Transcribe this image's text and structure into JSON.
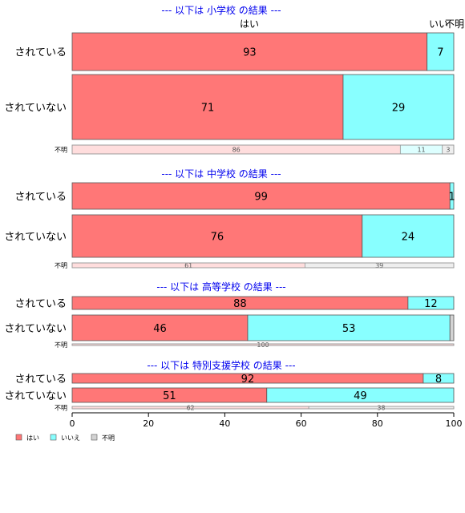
{
  "chart_data": {
    "type": "bar",
    "orientation": "horizontal",
    "stacked": true,
    "xlim": [
      0,
      100
    ],
    "x_ticks": [
      "0",
      "20",
      "40",
      "60",
      "80",
      "100"
    ],
    "legend": {
      "placement": "bottom-left",
      "entries": [
        {
          "label": "はい",
          "color": "#ff7777"
        },
        {
          "label": "いいえ",
          "color": "#88ffff"
        },
        {
          "label": "不明",
          "color": "#d3d3d3"
        }
      ]
    },
    "column_headers": [
      "はい",
      "いい",
      "不明"
    ],
    "panels": [
      {
        "title": "--- 以下は 小学校 の結果 ---",
        "rows": [
          {
            "label": "されている",
            "values": [
              93,
              7,
              0
            ],
            "value_labels": [
              "93",
              "7",
              ""
            ]
          },
          {
            "label": "されていない",
            "values": [
              71,
              29,
              0
            ],
            "value_labels": [
              "71",
              "29",
              ""
            ]
          },
          {
            "label": "不明",
            "values": [
              86,
              11,
              3
            ],
            "value_labels": [
              "86",
              "11",
              "3"
            ],
            "faded": true
          }
        ]
      },
      {
        "title": "--- 以下は 中学校 の結果 ---",
        "rows": [
          {
            "label": "されている",
            "values": [
              99,
              1,
              0
            ],
            "value_labels": [
              "99",
              "1",
              ""
            ]
          },
          {
            "label": "されていない",
            "values": [
              76,
              24,
              0
            ],
            "value_labels": [
              "76",
              "24",
              ""
            ]
          },
          {
            "label": "不明",
            "values": [
              61,
              0,
              39
            ],
            "value_labels": [
              "61",
              "",
              "39"
            ],
            "faded": true
          }
        ]
      },
      {
        "title": "--- 以下は 高等学校 の結果 ---",
        "rows": [
          {
            "label": "されている",
            "values": [
              88,
              12,
              0
            ],
            "value_labels": [
              "88",
              "12",
              ""
            ]
          },
          {
            "label": "されていない",
            "values": [
              46,
              53,
              1
            ],
            "value_labels": [
              "46",
              "53",
              ""
            ]
          },
          {
            "label": "不明",
            "values": [
              100,
              0,
              0
            ],
            "value_labels": [
              "100",
              "",
              ""
            ],
            "faded": true
          }
        ]
      },
      {
        "title": "--- 以下は 特別支援学校 の結果 ---",
        "rows": [
          {
            "label": "されている",
            "values": [
              92,
              8,
              0
            ],
            "value_labels": [
              "92",
              "8",
              ""
            ]
          },
          {
            "label": "されていない",
            "values": [
              51,
              49,
              0
            ],
            "value_labels": [
              "51",
              "49",
              ""
            ]
          },
          {
            "label": "不明",
            "values": [
              62,
              0,
              38
            ],
            "value_labels": [
              "62",
              "",
              "38"
            ],
            "faded": true
          }
        ]
      }
    ]
  }
}
